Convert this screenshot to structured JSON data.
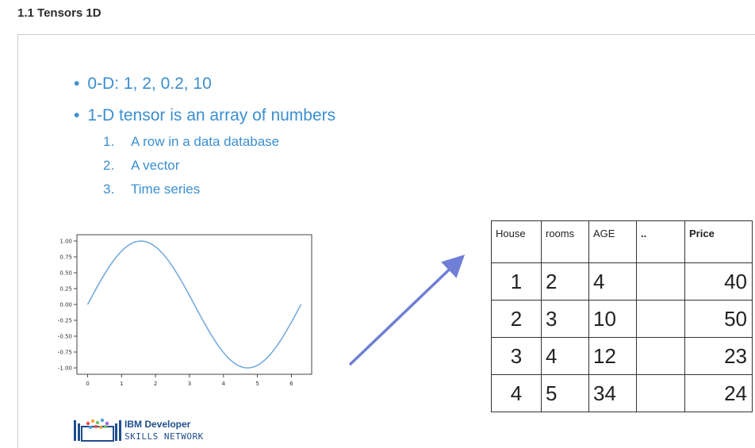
{
  "page": {
    "heading": "1.1 Tensors 1D"
  },
  "slide": {
    "bullets": [
      "0-D: 1, 2, 0.2, 10",
      "1-D tensor is an array of numbers"
    ],
    "subitems": [
      {
        "num": "1.",
        "text": "A row in a data database"
      },
      {
        "num": "2.",
        "text": "A vector"
      },
      {
        "num": "3.",
        "text": "Time series"
      }
    ],
    "colors": {
      "text_blue": "#3b8fd1",
      "arrow": "#6f7fd6",
      "plot_line": "#6fa8dc"
    },
    "logo": {
      "line1": "IBM Developer",
      "line2": "SKILLS NETWORK"
    }
  },
  "chart_data": {
    "type": "line",
    "title": "",
    "xlabel": "",
    "ylabel": "",
    "function": "sin(x)",
    "xlim": [
      0,
      6.2832
    ],
    "ylim": [
      -1.0,
      1.0
    ],
    "x_ticks": [
      "0",
      "1",
      "2",
      "3",
      "4",
      "5",
      "6"
    ],
    "y_ticks": [
      "1.00",
      "0.75",
      "0.50",
      "0.25",
      "0.00",
      "-0.25",
      "-0.50",
      "-0.75",
      "-1.00"
    ],
    "x": [
      0,
      0.5,
      1,
      1.5708,
      2,
      2.5,
      3,
      3.5,
      4,
      4.5,
      4.7124,
      5,
      5.5,
      6,
      6.2832
    ],
    "y": [
      0,
      0.479,
      0.841,
      1.0,
      0.909,
      0.598,
      0.141,
      -0.351,
      -0.757,
      -0.978,
      -1.0,
      -0.959,
      -0.706,
      -0.279,
      0
    ],
    "grid": false
  },
  "table": {
    "headers": [
      "House",
      "rooms",
      "AGE",
      "..",
      "Price"
    ],
    "rows": [
      [
        "1",
        "2",
        "4",
        "",
        "40"
      ],
      [
        "2",
        "3",
        "10",
        "",
        "50"
      ],
      [
        "3",
        "4",
        "12",
        "",
        "23"
      ],
      [
        "4",
        "5",
        "34",
        "",
        "24"
      ]
    ]
  }
}
